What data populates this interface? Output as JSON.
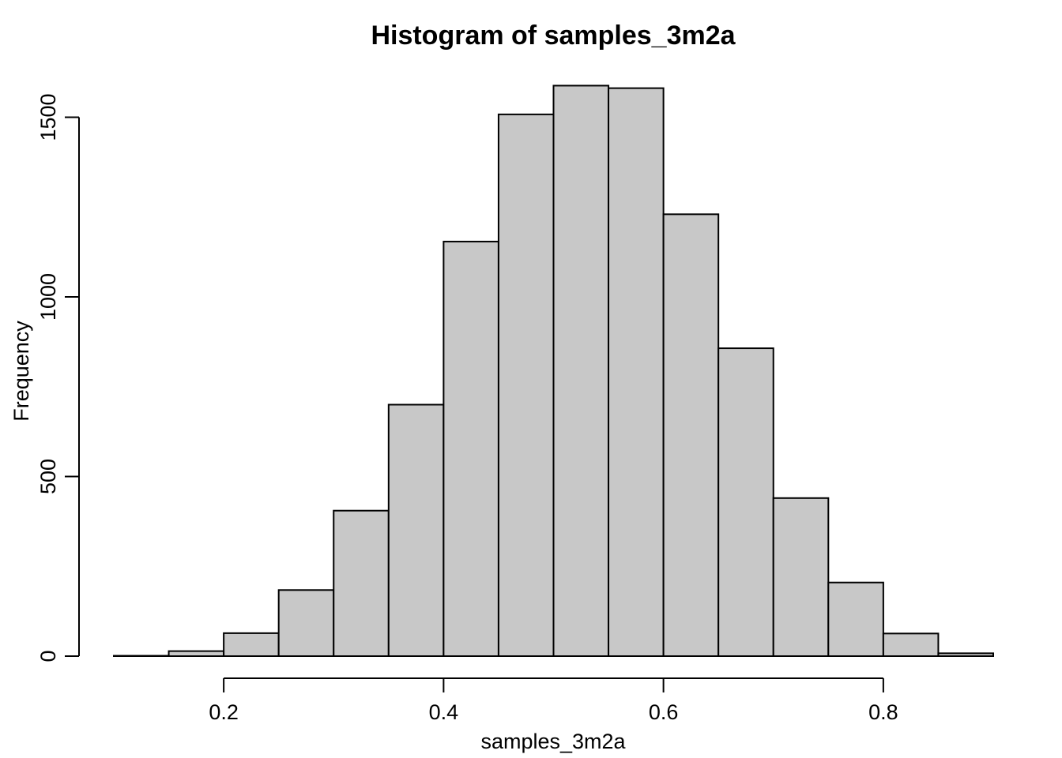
{
  "chart_data": {
    "type": "bar",
    "histogram": true,
    "title": "Histogram of samples_3m2a",
    "xlabel": "samples_3m2a",
    "ylabel": "Frequency",
    "bin_width": 0.05,
    "bins": [
      {
        "x0": 0.1,
        "x1": 0.15,
        "count": 1
      },
      {
        "x0": 0.15,
        "x1": 0.2,
        "count": 14
      },
      {
        "x0": 0.2,
        "x1": 0.25,
        "count": 64
      },
      {
        "x0": 0.25,
        "x1": 0.3,
        "count": 184
      },
      {
        "x0": 0.3,
        "x1": 0.35,
        "count": 405
      },
      {
        "x0": 0.35,
        "x1": 0.4,
        "count": 700
      },
      {
        "x0": 0.4,
        "x1": 0.45,
        "count": 1154
      },
      {
        "x0": 0.45,
        "x1": 0.5,
        "count": 1508
      },
      {
        "x0": 0.5,
        "x1": 0.55,
        "count": 1588
      },
      {
        "x0": 0.55,
        "x1": 0.6,
        "count": 1581
      },
      {
        "x0": 0.6,
        "x1": 0.65,
        "count": 1230
      },
      {
        "x0": 0.65,
        "x1": 0.7,
        "count": 857
      },
      {
        "x0": 0.7,
        "x1": 0.75,
        "count": 440
      },
      {
        "x0": 0.75,
        "x1": 0.8,
        "count": 205
      },
      {
        "x0": 0.8,
        "x1": 0.85,
        "count": 63
      },
      {
        "x0": 0.85,
        "x1": 0.9,
        "count": 8
      }
    ],
    "xlim": [
      0.1,
      0.9
    ],
    "ylim": [
      0,
      1600
    ],
    "x_ticks": [
      0.2,
      0.4,
      0.6,
      0.8
    ],
    "x_tick_labels": [
      "0.2",
      "0.4",
      "0.6",
      "0.8"
    ],
    "y_ticks": [
      0,
      500,
      1000,
      1500
    ],
    "y_tick_labels": [
      "0",
      "500",
      "1000",
      "1500"
    ],
    "bar_color": "#c8c8c8",
    "edge_color": "#000000",
    "grid": false,
    "legend": "none"
  }
}
